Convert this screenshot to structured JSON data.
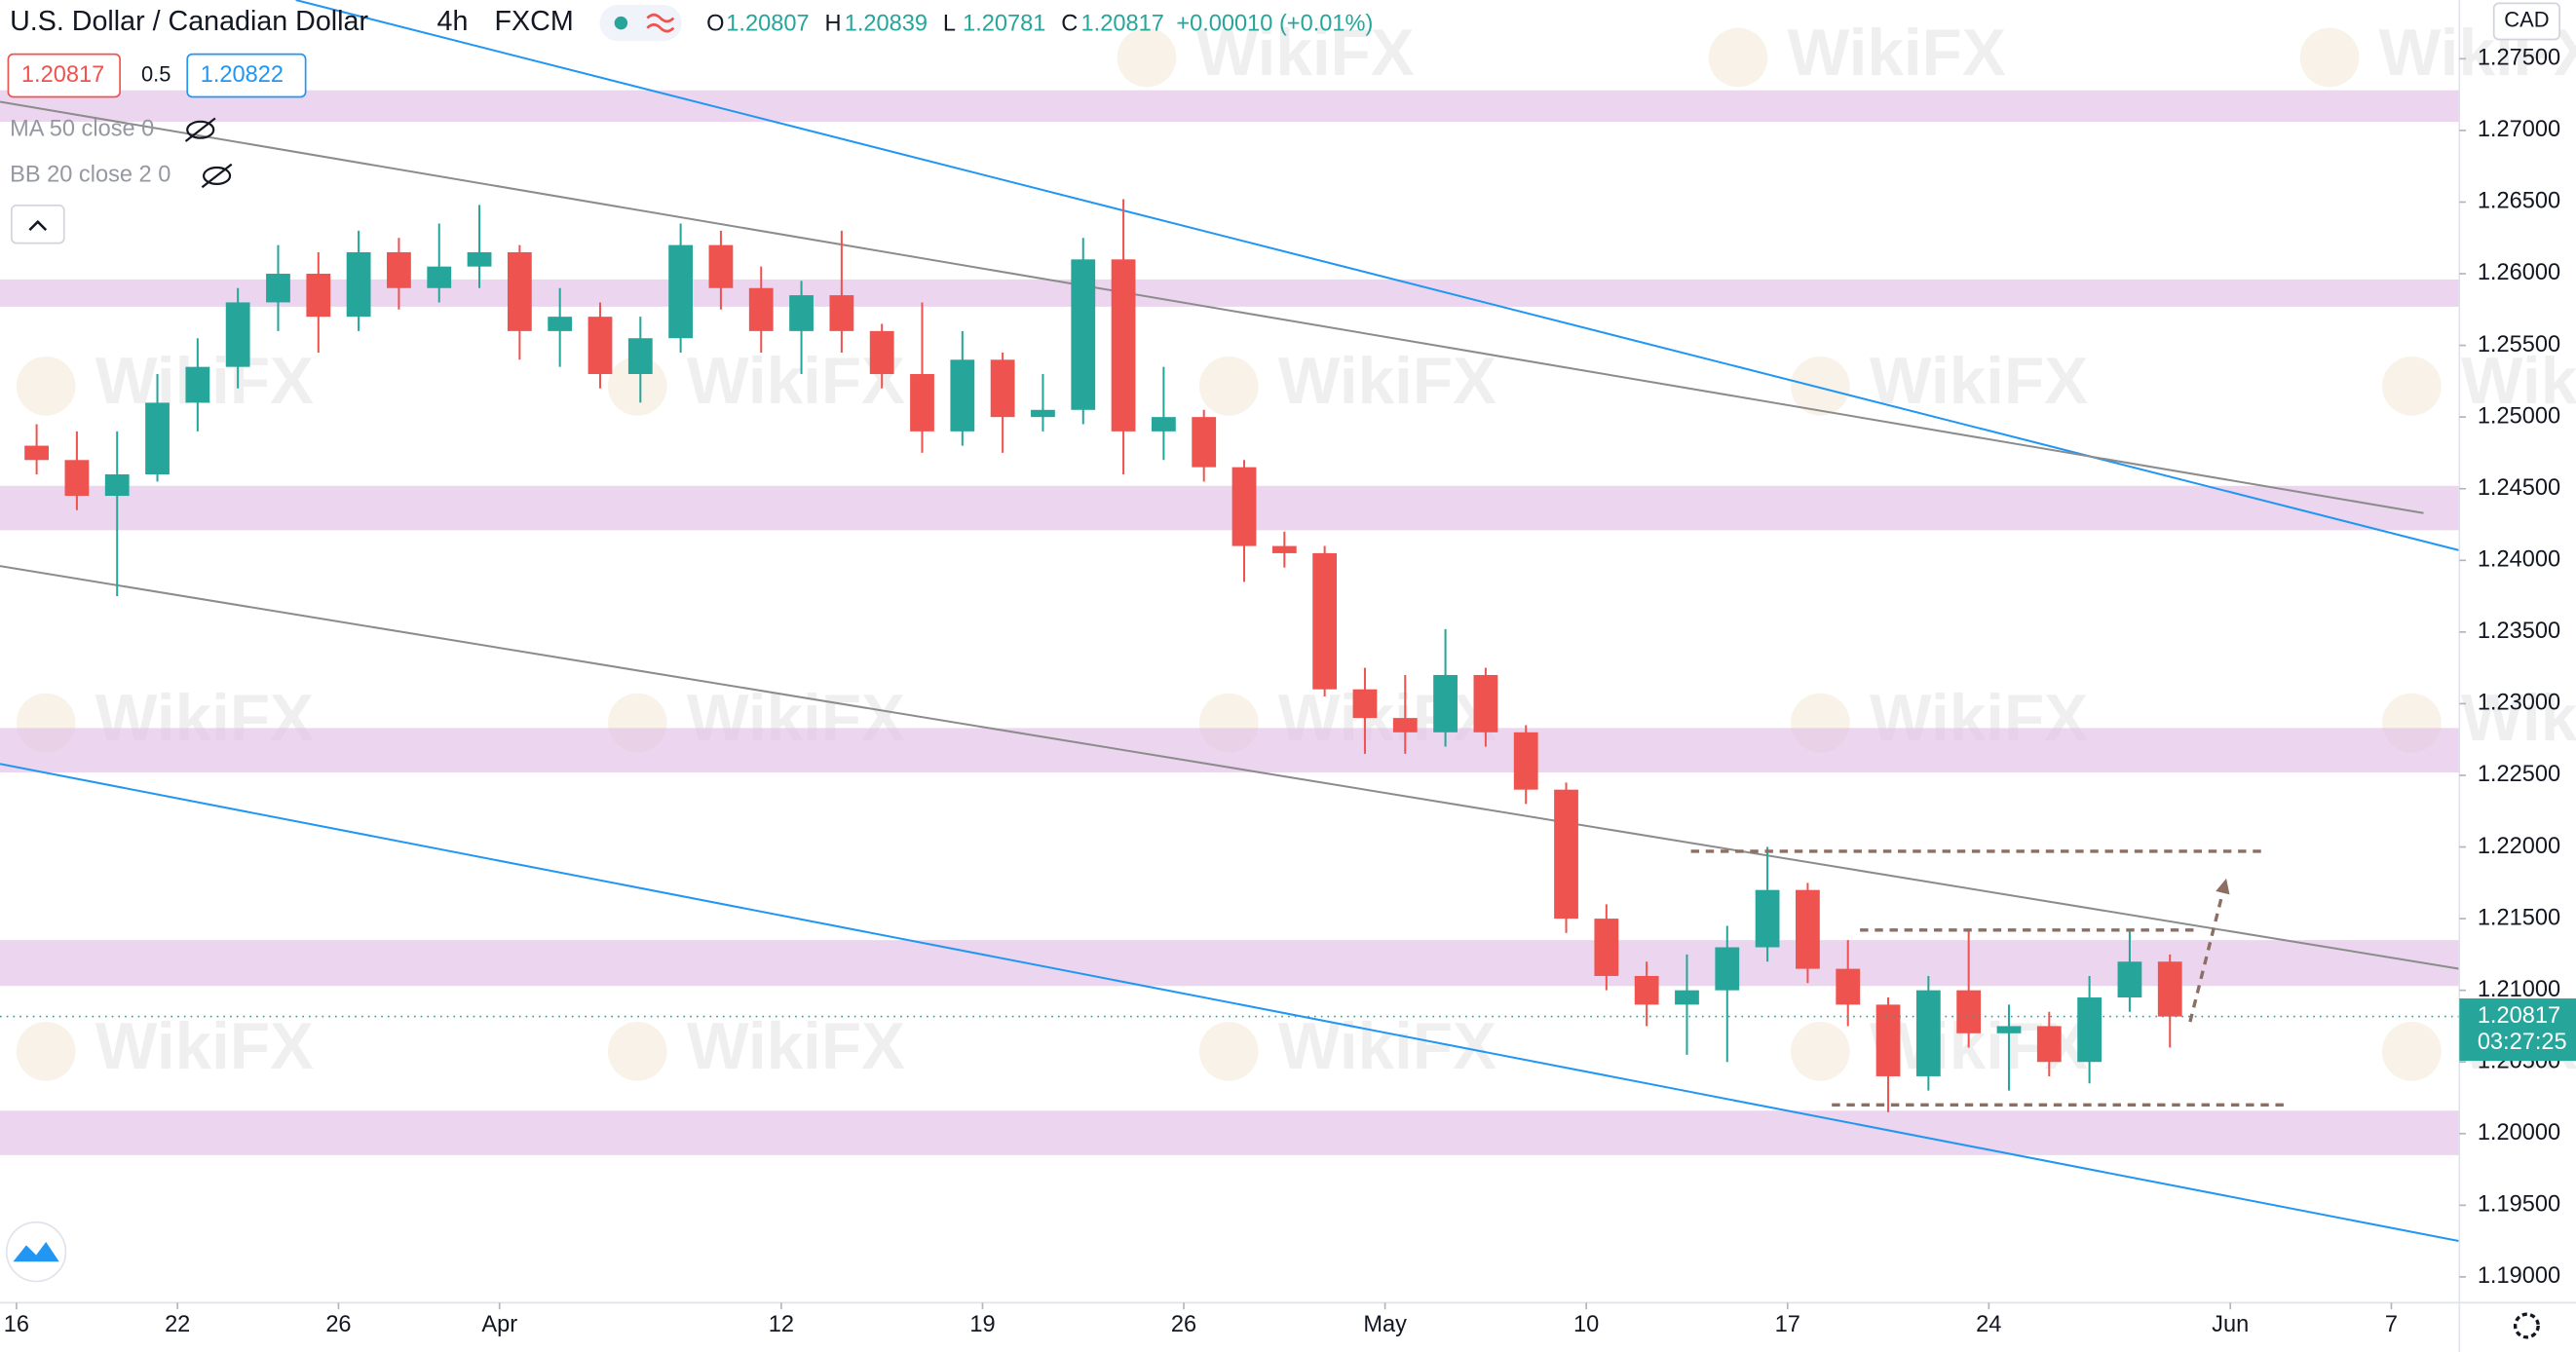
{
  "chart_data": {
    "type": "candlestick",
    "symbol": "U.S. Dollar / Canadian Dollar",
    "interval": "4h",
    "exchange": "FXCM",
    "ohlc_header": [
      {
        "key": "O",
        "value": "1.20807"
      },
      {
        "key": "H",
        "value": "1.20839"
      },
      {
        "key": "L",
        "value": "1.20781"
      },
      {
        "key": "C",
        "value": "1.20817"
      }
    ],
    "change": "+0.00010 (+0.01%)",
    "bid": "1.20817",
    "spread": "0.5",
    "ask": "1.20822",
    "indicators": [
      "MA 50 close 0",
      "BB 20 close 2 0"
    ],
    "currency": "CAD",
    "watermark": "WikiFX",
    "up_color": "#26a69a",
    "down_color": "#ef5350",
    "ohlc": [
      [
        1.248,
        1.2495,
        1.246,
        1.247
      ],
      [
        1.247,
        1.249,
        1.2435,
        1.2445
      ],
      [
        1.2445,
        1.249,
        1.2375,
        1.246
      ],
      [
        1.246,
        1.253,
        1.2455,
        1.251
      ],
      [
        1.251,
        1.2555,
        1.249,
        1.2535
      ],
      [
        1.2535,
        1.259,
        1.252,
        1.258
      ],
      [
        1.258,
        1.262,
        1.256,
        1.26
      ],
      [
        1.26,
        1.2615,
        1.2545,
        1.257
      ],
      [
        1.257,
        1.263,
        1.256,
        1.2615
      ],
      [
        1.2615,
        1.2625,
        1.2575,
        1.259
      ],
      [
        1.259,
        1.2635,
        1.258,
        1.2605
      ],
      [
        1.2605,
        1.2648,
        1.259,
        1.2615
      ],
      [
        1.2615,
        1.262,
        1.254,
        1.256
      ],
      [
        1.256,
        1.259,
        1.2535,
        1.257
      ],
      [
        1.257,
        1.258,
        1.252,
        1.253
      ],
      [
        1.253,
        1.257,
        1.251,
        1.2555
      ],
      [
        1.2555,
        1.2635,
        1.2545,
        1.262
      ],
      [
        1.262,
        1.263,
        1.2575,
        1.259
      ],
      [
        1.259,
        1.2605,
        1.2545,
        1.256
      ],
      [
        1.256,
        1.2595,
        1.253,
        1.2585
      ],
      [
        1.2585,
        1.263,
        1.2545,
        1.256
      ],
      [
        1.256,
        1.2565,
        1.252,
        1.253
      ],
      [
        1.253,
        1.258,
        1.2475,
        1.249
      ],
      [
        1.249,
        1.256,
        1.248,
        1.254
      ],
      [
        1.254,
        1.2545,
        1.2475,
        1.25
      ],
      [
        1.25,
        1.253,
        1.249,
        1.2505
      ],
      [
        1.2505,
        1.2625,
        1.2495,
        1.261
      ],
      [
        1.261,
        1.2652,
        1.246,
        1.249
      ],
      [
        1.249,
        1.2535,
        1.247,
        1.25
      ],
      [
        1.25,
        1.2505,
        1.2455,
        1.2465
      ],
      [
        1.2465,
        1.247,
        1.2385,
        1.241
      ],
      [
        1.241,
        1.242,
        1.2395,
        1.2405
      ],
      [
        1.2405,
        1.241,
        1.2305,
        1.231
      ],
      [
        1.231,
        1.2325,
        1.2265,
        1.229
      ],
      [
        1.229,
        1.232,
        1.2265,
        1.228
      ],
      [
        1.228,
        1.2352,
        1.227,
        1.232
      ],
      [
        1.232,
        1.2325,
        1.227,
        1.228
      ],
      [
        1.228,
        1.2285,
        1.223,
        1.224
      ],
      [
        1.224,
        1.2245,
        1.214,
        1.215
      ],
      [
        1.215,
        1.216,
        1.21,
        1.211
      ],
      [
        1.211,
        1.212,
        1.2075,
        1.209
      ],
      [
        1.209,
        1.2125,
        1.2055,
        1.21
      ],
      [
        1.21,
        1.2145,
        1.205,
        1.213
      ],
      [
        1.213,
        1.22,
        1.212,
        1.217
      ],
      [
        1.217,
        1.2175,
        1.2105,
        1.2115
      ],
      [
        1.2115,
        1.2135,
        1.2075,
        1.209
      ],
      [
        1.209,
        1.2095,
        1.2015,
        1.204
      ],
      [
        1.204,
        1.211,
        1.203,
        1.21
      ],
      [
        1.21,
        1.2143,
        1.206,
        1.207
      ],
      [
        1.207,
        1.209,
        1.203,
        1.2075
      ],
      [
        1.2075,
        1.2085,
        1.204,
        1.205
      ],
      [
        1.205,
        1.211,
        1.2035,
        1.2095
      ],
      [
        1.2095,
        1.2142,
        1.2085,
        1.212
      ],
      [
        1.212,
        1.2125,
        1.206,
        1.20817
      ]
    ],
    "last": {
      "value": 1.20817,
      "label": "1.20817"
    },
    "countdown": "03:27:25",
    "zones": [
      [
        1.2706,
        1.2728
      ],
      [
        1.2577,
        1.2596
      ],
      [
        1.2421,
        1.2452
      ],
      [
        1.2252,
        1.2283
      ],
      [
        1.2103,
        1.2135
      ],
      [
        1.1985,
        1.2016
      ]
    ],
    "trend_lines": [
      {
        "color": "#2196f3",
        "points": [
          [
            6.94,
            1.2791
          ],
          [
            60.69,
            1.2407
          ]
        ]
      },
      {
        "color": "#2196f3",
        "points": [
          [
            -0.41,
            1.2258
          ],
          [
            60.69,
            1.1925
          ]
        ]
      },
      {
        "color": "#8c8c8c",
        "points": [
          [
            -0.41,
            1.272
          ],
          [
            59.8,
            1.2433
          ]
        ]
      },
      {
        "color": "#8c8c8c",
        "points": [
          [
            -0.41,
            1.2396
          ],
          [
            60.69,
            1.2115
          ]
        ]
      }
    ],
    "levels": [
      {
        "y": 1.2197,
        "x": [
          41.6,
          55.8
        ]
      },
      {
        "y": 1.2142,
        "x": [
          45.8,
          54.1
        ]
      },
      {
        "y": 1.202,
        "x": [
          45.1,
          56.4
        ]
      }
    ],
    "arrow": [
      [
        54.0,
        1.2078
      ],
      [
        54.9,
        1.2178
      ]
    ],
    "xlim": [
      -0.41,
      60.69
    ],
    "xticks": [
      {
        "value": 0,
        "label": "16"
      },
      {
        "value": 4,
        "label": "22"
      },
      {
        "value": 8,
        "label": "26"
      },
      {
        "value": 12,
        "label": "Apr"
      },
      {
        "value": 19,
        "label": "12"
      },
      {
        "value": 24,
        "label": "19"
      },
      {
        "value": 29,
        "label": "26"
      },
      {
        "value": 34,
        "label": "May"
      },
      {
        "value": 39,
        "label": "10"
      },
      {
        "value": 44,
        "label": "17"
      },
      {
        "value": 49,
        "label": "24"
      },
      {
        "value": 55,
        "label": "Jun"
      },
      {
        "value": 59,
        "label": "7"
      }
    ],
    "ylim": [
      1.1882,
      1.2791
    ],
    "yticks": [
      {
        "value": 1.19,
        "label": "1.19000"
      },
      {
        "value": 1.195,
        "label": "1.19500"
      },
      {
        "value": 1.2,
        "label": "1.20000"
      },
      {
        "value": 1.205,
        "label": "1.20500"
      },
      {
        "value": 1.21,
        "label": "1.21000"
      },
      {
        "value": 1.215,
        "label": "1.21500"
      },
      {
        "value": 1.22,
        "label": "1.22000"
      },
      {
        "value": 1.225,
        "label": "1.22500"
      },
      {
        "value": 1.23,
        "label": "1.23000"
      },
      {
        "value": 1.235,
        "label": "1.23500"
      },
      {
        "value": 1.24,
        "label": "1.24000"
      },
      {
        "value": 1.245,
        "label": "1.24500"
      },
      {
        "value": 1.25,
        "label": "1.25000"
      },
      {
        "value": 1.255,
        "label": "1.25500"
      },
      {
        "value": 1.26,
        "label": "1.26000"
      },
      {
        "value": 1.265,
        "label": "1.26500"
      },
      {
        "value": 1.27,
        "label": "1.27000"
      },
      {
        "value": 1.275,
        "label": "1.27500"
      }
    ]
  }
}
